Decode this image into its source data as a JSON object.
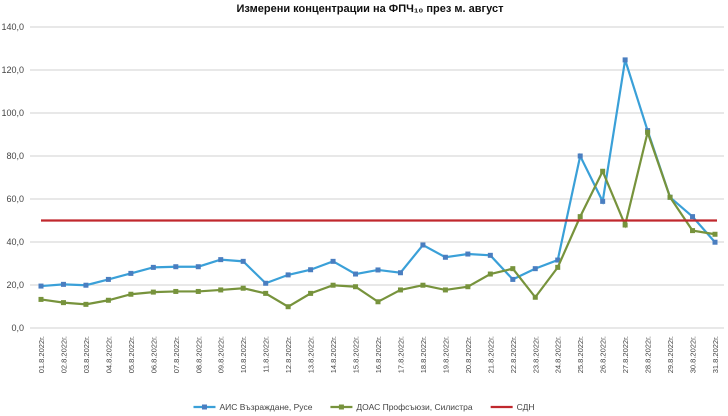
{
  "chart_data": {
    "type": "line",
    "title": "Измерени концентрации на ФПЧ₁₀ през м. август",
    "ylim": [
      0,
      140
    ],
    "yticks": [
      "0,0",
      "20,0",
      "40,0",
      "60,0",
      "80,0",
      "100,0",
      "120,0",
      "140,0"
    ],
    "grid": true,
    "legend_placement": "bottom",
    "categories": [
      "01.8.2022г.",
      "02.8.2022г.",
      "03.8.2022г.",
      "04.8.2022г.",
      "05.8.2022г.",
      "06.8.2022г.",
      "07.8.2022г.",
      "08.8.2022г.",
      "09.8.2022г.",
      "10.8.2022г.",
      "11.8.2022г.",
      "12.8.2022г.",
      "13.8.2022г.",
      "14.8.2022г.",
      "15.8.2022г.",
      "16.8.2022г.",
      "17.8.2022г.",
      "18.8.2022г.",
      "19.8.2022г.",
      "20.8.2022г.",
      "21.8.2022г.",
      "22.8.2022г.",
      "23.8.2022г.",
      "24.8.2022г.",
      "25.8.2022г.",
      "26.8.2022г.",
      "27.8.2022г.",
      "28.8.2022г.",
      "29.8.2022г.",
      "30.8.2022г.",
      "31.8.2022г."
    ],
    "series": [
      {
        "name": "АИС Възраждане, Русе",
        "color": "#3aa0d8",
        "marker_color": "#4a7ec0",
        "values": [
          19.5,
          20.3,
          19.9,
          22.6,
          25.4,
          28.2,
          28.5,
          28.5,
          31.8,
          31.0,
          20.8,
          24.7,
          27.1,
          31.0,
          25.1,
          27.0,
          25.7,
          38.6,
          32.9,
          34.4,
          33.8,
          22.6,
          27.6,
          31.6,
          80.0,
          58.9,
          124.7,
          91.8,
          60.8,
          51.8,
          39.9
        ]
      },
      {
        "name": "ДОАС Профсъюзи, Силистра",
        "color": "#77933c",
        "marker_color": "#77933c",
        "values": [
          13.3,
          11.8,
          11.0,
          12.9,
          15.7,
          16.7,
          17.0,
          17.0,
          17.7,
          18.5,
          16.1,
          9.9,
          16.1,
          19.9,
          19.2,
          12.2,
          17.7,
          19.9,
          17.7,
          19.2,
          25.1,
          27.6,
          14.3,
          28.2,
          51.8,
          72.9,
          47.9,
          91.0,
          60.8,
          45.3,
          43.6
        ]
      },
      {
        "name": "СДН",
        "color": "#c0282d",
        "marker_color": null,
        "values": [
          50,
          50,
          50,
          50,
          50,
          50,
          50,
          50,
          50,
          50,
          50,
          50,
          50,
          50,
          50,
          50,
          50,
          50,
          50,
          50,
          50,
          50,
          50,
          50,
          50,
          50,
          50,
          50,
          50,
          50,
          50
        ]
      }
    ]
  }
}
